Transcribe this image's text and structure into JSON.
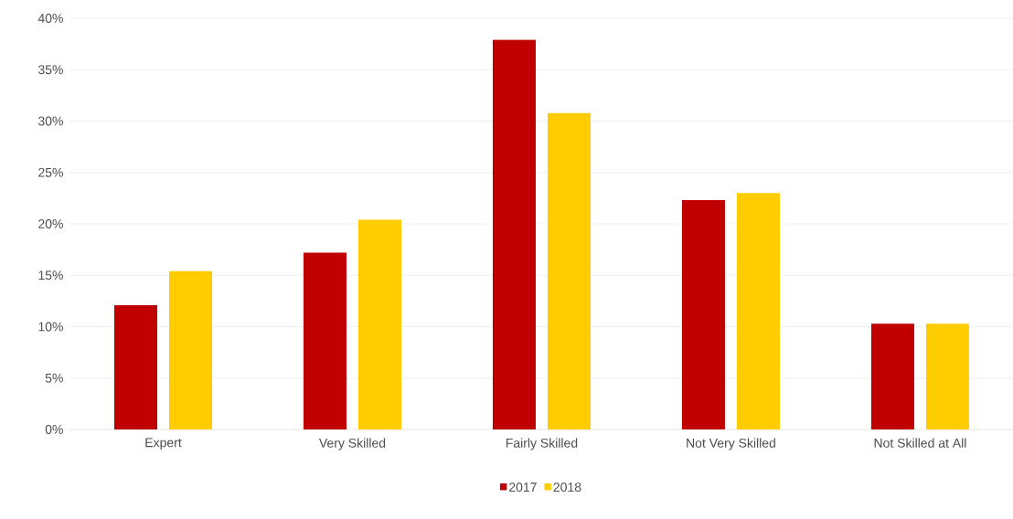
{
  "chart_data": {
    "type": "bar",
    "categories": [
      "Expert",
      "Very Skilled",
      "Fairly Skilled",
      "Not Very Skilled",
      "Not Skilled at All"
    ],
    "series": [
      {
        "name": "2017",
        "color": "#c00000",
        "values": [
          12.1,
          17.2,
          37.9,
          22.3,
          10.3
        ]
      },
      {
        "name": "2018",
        "color": "#ffcc00",
        "values": [
          15.4,
          20.4,
          30.8,
          23.0,
          10.3
        ]
      }
    ],
    "ylim": [
      0,
      40
    ],
    "yticks": [
      {
        "value": 0,
        "label": "0%"
      },
      {
        "value": 5,
        "label": "5%"
      },
      {
        "value": 10,
        "label": "10%"
      },
      {
        "value": 15,
        "label": "15%"
      },
      {
        "value": 20,
        "label": "20%"
      },
      {
        "value": 25,
        "label": "25%"
      },
      {
        "value": 30,
        "label": "30%"
      },
      {
        "value": 35,
        "label": "35%"
      },
      {
        "value": 40,
        "label": "40%"
      }
    ],
    "grid": "y",
    "legend": "bottom"
  }
}
